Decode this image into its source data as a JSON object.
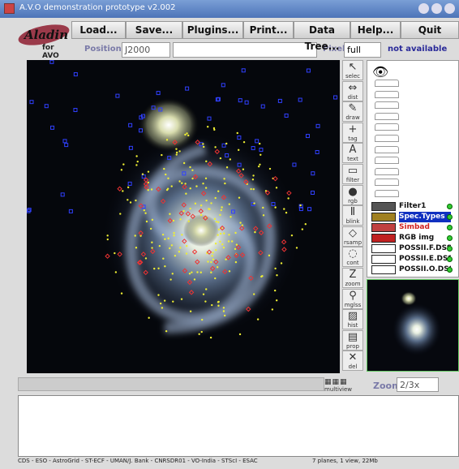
{
  "window": {
    "title": "A.V.O demonstration prototype v2.002"
  },
  "logo": {
    "name": "Aladin",
    "subtitle": "for AVO"
  },
  "menu": [
    "Load...",
    "Save...",
    "Plugins...",
    "Print...",
    "Data Tree...",
    "Help...",
    "Quit"
  ],
  "position_bar": {
    "position_label": "Position",
    "frame": "J2000",
    "pixel_label": "Pixel",
    "pixel_mode": "full",
    "status": "not available"
  },
  "tools": [
    "selec",
    "dist",
    "draw",
    "tag",
    "text",
    "filter",
    "rgb",
    "blink",
    "rsamp",
    "cont",
    "zoom",
    "mglss",
    "hist",
    "prop",
    "del"
  ],
  "layers": [
    "Filter1",
    "Spec.Types",
    "Simbad",
    "RGB img",
    "POSSII.F.DSS",
    "POSSII.E.DSS",
    "POSSII.O.DSS"
  ],
  "view_controls": {
    "multiview": "multiview",
    "zoom_label": "Zoom",
    "zoom": "2/3x"
  },
  "status": {
    "credits": "CDS - ESO - AstroGrid - ST-ECF - UMAN/J. Bank - CNRSDR01 - VO-India - STScI - ESAC",
    "summary": "7 planes, 1 view, 22Mb"
  }
}
